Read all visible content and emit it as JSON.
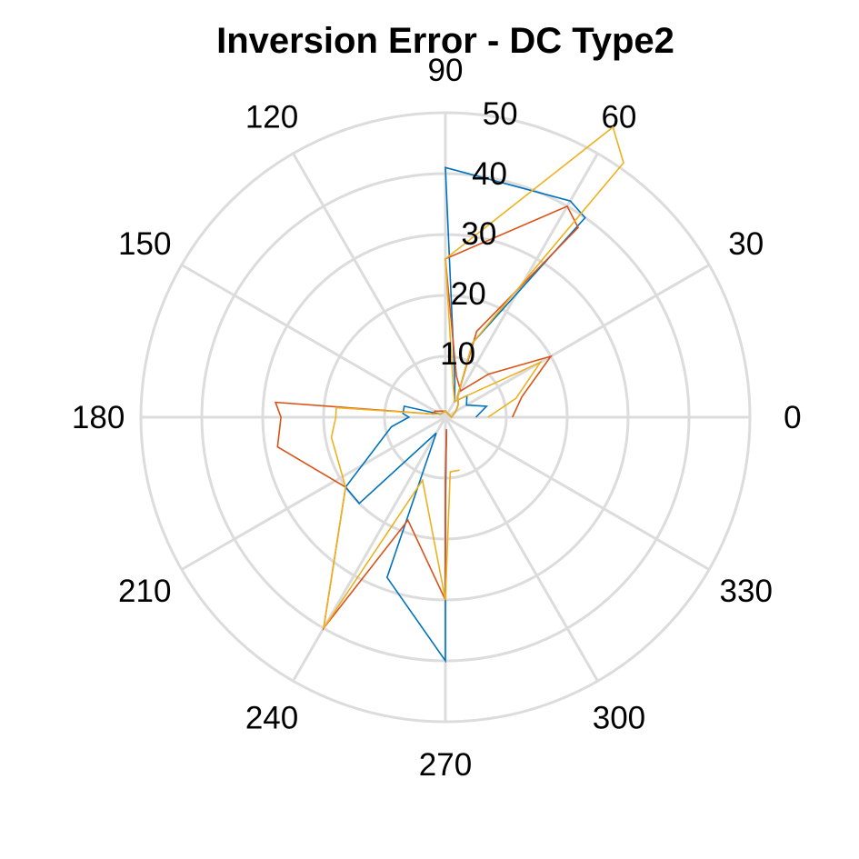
{
  "chart_data": {
    "type": "polar-line",
    "title": "Inversion Error - DC Type2",
    "theta_ticks": [
      "0",
      "30",
      "60",
      "90",
      "120",
      "150",
      "180",
      "210",
      "240",
      "270",
      "300",
      "330"
    ],
    "r_ticks": [
      "10",
      "20",
      "30",
      "40",
      "50"
    ],
    "rlim": [
      0,
      50
    ],
    "grid": true,
    "series": [
      {
        "color": "#0072BD",
        "points": [
          [
            0,
            5
          ],
          [
            15,
            7
          ],
          [
            30,
            4
          ],
          [
            45,
            5
          ],
          [
            60,
            3
          ],
          [
            75,
            6
          ],
          [
            90,
            41
          ],
          [
            60,
            41
          ],
          [
            55,
            40
          ],
          [
            70,
            13
          ],
          [
            60,
            4
          ],
          [
            45,
            3
          ],
          [
            30,
            2
          ],
          [
            0,
            1
          ],
          [
            90,
            1
          ],
          [
            150,
            1
          ],
          [
            165,
            7
          ],
          [
            175,
            7
          ],
          [
            180,
            6
          ],
          [
            190,
            9
          ],
          [
            215,
            20
          ],
          [
            225,
            20
          ],
          [
            240,
            3
          ],
          [
            250,
            28
          ],
          [
            270,
            40
          ],
          [
            270,
            15
          ],
          [
            275,
            2
          ]
        ]
      },
      {
        "color": "#D95319",
        "points": [
          [
            0,
            11
          ],
          [
            15,
            13
          ],
          [
            30,
            20
          ],
          [
            45,
            10
          ],
          [
            60,
            5
          ],
          [
            75,
            7
          ],
          [
            90,
            26
          ],
          [
            60,
            40
          ],
          [
            55,
            38
          ],
          [
            70,
            15
          ],
          [
            60,
            4
          ],
          [
            45,
            3
          ],
          [
            30,
            2
          ],
          [
            0,
            1
          ],
          [
            90,
            1
          ],
          [
            150,
            2
          ],
          [
            165,
            2
          ],
          [
            175,
            28
          ],
          [
            180,
            27
          ],
          [
            190,
            28
          ],
          [
            215,
            20
          ],
          [
            240,
            40
          ],
          [
            250,
            18
          ],
          [
            270,
            30
          ],
          [
            270,
            10
          ],
          [
            275,
            2
          ]
        ]
      },
      {
        "color": "#EDB120",
        "points": [
          [
            0,
            7
          ],
          [
            15,
            12
          ],
          [
            30,
            18
          ],
          [
            45,
            5
          ],
          [
            60,
            3
          ],
          [
            75,
            5
          ],
          [
            90,
            26
          ],
          [
            60,
            55
          ],
          [
            55,
            51
          ],
          [
            70,
            13
          ],
          [
            60,
            4
          ],
          [
            45,
            3
          ],
          [
            30,
            2
          ],
          [
            0,
            1
          ],
          [
            90,
            1
          ],
          [
            150,
            1
          ],
          [
            165,
            2
          ],
          [
            175,
            18
          ],
          [
            180,
            18
          ],
          [
            190,
            19
          ],
          [
            215,
            20
          ],
          [
            240,
            40
          ],
          [
            250,
            11
          ],
          [
            270,
            30
          ],
          [
            275,
            9
          ],
          [
            285,
            9
          ]
        ]
      }
    ]
  }
}
